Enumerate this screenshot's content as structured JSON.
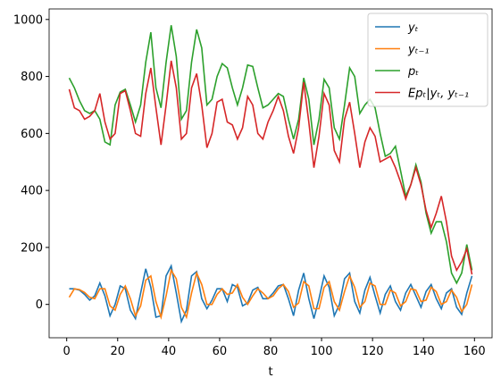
{
  "chart_data": {
    "type": "line",
    "xlabel": "t",
    "x": [
      1,
      3,
      5,
      7,
      9,
      11,
      13,
      15,
      17,
      19,
      21,
      23,
      25,
      27,
      29,
      31,
      33,
      35,
      37,
      39,
      41,
      43,
      45,
      47,
      49,
      51,
      53,
      55,
      57,
      59,
      61,
      63,
      65,
      67,
      69,
      71,
      73,
      75,
      77,
      79,
      81,
      83,
      85,
      87,
      89,
      91,
      93,
      95,
      97,
      99,
      101,
      103,
      105,
      107,
      109,
      111,
      113,
      115,
      117,
      119,
      121,
      123,
      125,
      127,
      129,
      131,
      133,
      135,
      137,
      139,
      141,
      143,
      145,
      147,
      149,
      151,
      153,
      155,
      157,
      159
    ],
    "series": [
      {
        "name": "yₜ",
        "color": "#1f77b4",
        "values": [
          55,
          55,
          50,
          35,
          15,
          30,
          75,
          30,
          -40,
          0,
          65,
          55,
          -20,
          -50,
          40,
          125,
          60,
          -45,
          -40,
          100,
          135,
          40,
          -60,
          -20,
          100,
          115,
          20,
          -15,
          15,
          55,
          55,
          10,
          70,
          60,
          -5,
          5,
          50,
          60,
          20,
          20,
          40,
          65,
          70,
          20,
          -40,
          50,
          110,
          20,
          -50,
          20,
          100,
          60,
          -40,
          0,
          90,
          110,
          10,
          -30,
          50,
          95,
          30,
          -30,
          35,
          65,
          10,
          -20,
          40,
          70,
          30,
          -10,
          45,
          70,
          20,
          -15,
          40,
          55,
          -10,
          -35,
          40,
          100
        ]
      },
      {
        "name": "yₜ₋₁",
        "color": "#ff7f0e",
        "values": [
          25,
          55,
          52,
          42,
          25,
          20,
          55,
          55,
          -5,
          -20,
          35,
          65,
          20,
          -40,
          -5,
          85,
          100,
          10,
          -45,
          30,
          120,
          90,
          -10,
          -45,
          40,
          110,
          70,
          0,
          0,
          35,
          55,
          35,
          40,
          70,
          25,
          0,
          30,
          55,
          40,
          20,
          30,
          55,
          70,
          45,
          -10,
          5,
          80,
          65,
          -15,
          -15,
          60,
          80,
          10,
          -20,
          45,
          100,
          60,
          -10,
          10,
          75,
          65,
          0,
          0,
          50,
          40,
          -5,
          10,
          55,
          50,
          10,
          15,
          60,
          45,
          0,
          10,
          50,
          25,
          -25,
          0,
          70
        ]
      },
      {
        "name": "pₜ",
        "color": "#2ca02c",
        "values": [
          795,
          760,
          715,
          680,
          670,
          680,
          650,
          570,
          560,
          700,
          745,
          755,
          700,
          640,
          700,
          850,
          955,
          760,
          690,
          850,
          980,
          870,
          650,
          680,
          850,
          965,
          900,
          700,
          720,
          800,
          845,
          830,
          760,
          700,
          760,
          840,
          835,
          760,
          690,
          700,
          720,
          740,
          730,
          650,
          580,
          650,
          795,
          720,
          560,
          650,
          790,
          760,
          620,
          580,
          700,
          830,
          800,
          670,
          700,
          720,
          690,
          600,
          520,
          530,
          555,
          470,
          380,
          420,
          490,
          430,
          320,
          250,
          290,
          290,
          220,
          110,
          75,
          110,
          210,
          120
        ]
      },
      {
        "name": "Epₜ|yₜ, yₜ₋₁",
        "color": "#d62728",
        "values": [
          755,
          690,
          680,
          650,
          660,
          680,
          740,
          640,
          580,
          600,
          740,
          750,
          680,
          600,
          590,
          740,
          830,
          690,
          560,
          700,
          855,
          760,
          580,
          600,
          760,
          810,
          700,
          550,
          600,
          710,
          720,
          640,
          630,
          580,
          620,
          730,
          700,
          600,
          580,
          640,
          680,
          730,
          680,
          590,
          530,
          620,
          780,
          640,
          480,
          590,
          740,
          700,
          540,
          500,
          650,
          710,
          600,
          480,
          570,
          620,
          590,
          500,
          510,
          520,
          480,
          430,
          370,
          420,
          480,
          420,
          330,
          270,
          320,
          380,
          290,
          170,
          120,
          150,
          195,
          105
        ]
      }
    ],
    "xlim": [
      -6.9,
      166.9
    ],
    "xticks": [
      0,
      20,
      40,
      60,
      80,
      100,
      120,
      140,
      160
    ],
    "ylim": [
      -117,
      1037
    ],
    "yticks": [
      0,
      200,
      400,
      600,
      800,
      1000
    ],
    "legend": "upper right"
  }
}
